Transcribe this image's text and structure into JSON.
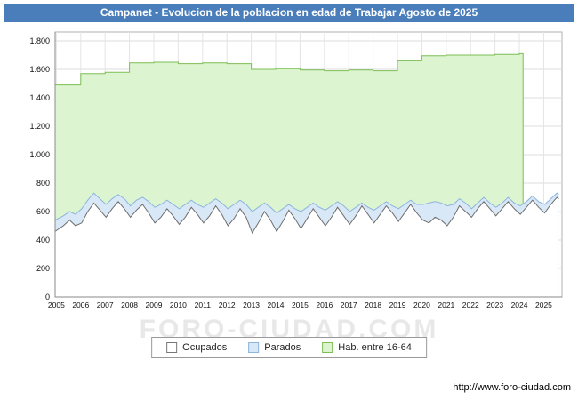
{
  "title": "Campanet - Evolucion de la poblacion en edad de Trabajar Agosto de 2025",
  "watermark": "FORO-CIUDAD.COM",
  "footer_url": "http://www.foro-ciudad.com",
  "colors": {
    "title_bar": "#4a7ebb",
    "grid": "#dcdcdc",
    "plot_border": "#b0b0b0",
    "habitantes_fill": "#dcf5d0",
    "habitantes_stroke": "#7dbd54",
    "parados_fill": "#d9e8f7",
    "parados_stroke": "#8cb4dd",
    "ocupados_fill": "#ffffff",
    "ocupados_stroke": "#6e6e6e"
  },
  "legend": {
    "items": [
      {
        "label": "Ocupados",
        "fill": "#ffffff",
        "stroke": "#777777"
      },
      {
        "label": "Parados",
        "fill": "#d9e8f7",
        "stroke": "#8cb4dd"
      },
      {
        "label": "Hab. entre 16-64",
        "fill": "#dcf5d0",
        "stroke": "#7dbd54"
      }
    ]
  },
  "chart_data": {
    "type": "area",
    "title": "Campanet - Evolucion de la poblacion en edad de Trabajar Agosto de 2025",
    "xlabel": "",
    "ylabel": "",
    "grid": true,
    "legend_position": "bottom",
    "xlim": [
      2004.95,
      2025.75
    ],
    "ylim": [
      0,
      1800
    ],
    "y_ticks": [
      {
        "v": 0,
        "label": "0"
      },
      {
        "v": 200,
        "label": "200"
      },
      {
        "v": 400,
        "label": "400"
      },
      {
        "v": 600,
        "label": "600"
      },
      {
        "v": 800,
        "label": "800"
      },
      {
        "v": 1000,
        "label": "1.000"
      },
      {
        "v": 1200,
        "label": "1.200"
      },
      {
        "v": 1400,
        "label": "1.400"
      },
      {
        "v": 1600,
        "label": "1.600"
      },
      {
        "v": 1800,
        "label": "1.800"
      }
    ],
    "x_ticks": [
      {
        "v": 2005,
        "label": "2005"
      },
      {
        "v": 2006,
        "label": "2006"
      },
      {
        "v": 2007,
        "label": "2007"
      },
      {
        "v": 2008,
        "label": "2008"
      },
      {
        "v": 2009,
        "label": "2009"
      },
      {
        "v": 2010,
        "label": "2010"
      },
      {
        "v": 2011,
        "label": "2011"
      },
      {
        "v": 2012,
        "label": "2012"
      },
      {
        "v": 2013,
        "label": "2013"
      },
      {
        "v": 2014,
        "label": "2014"
      },
      {
        "v": 2015,
        "label": "2015"
      },
      {
        "v": 2016,
        "label": "2016"
      },
      {
        "v": 2017,
        "label": "2017"
      },
      {
        "v": 2018,
        "label": "2018"
      },
      {
        "v": 2019,
        "label": "2019"
      },
      {
        "v": 2020,
        "label": "2020"
      },
      {
        "v": 2021,
        "label": "2021"
      },
      {
        "v": 2022,
        "label": "2022"
      },
      {
        "v": 2023,
        "label": "2023"
      },
      {
        "v": 2024,
        "label": "2024"
      },
      {
        "v": 2025,
        "label": "2025"
      }
    ],
    "x": [
      2004.95,
      2005.29,
      2005.54,
      2005.79,
      2006.04,
      2006.29,
      2006.54,
      2006.79,
      2007.04,
      2007.29,
      2007.54,
      2007.79,
      2008.04,
      2008.29,
      2008.54,
      2008.79,
      2009.04,
      2009.29,
      2009.54,
      2009.79,
      2010.04,
      2010.29,
      2010.54,
      2010.79,
      2011.04,
      2011.29,
      2011.54,
      2011.79,
      2012.04,
      2012.29,
      2012.54,
      2012.79,
      2013.04,
      2013.29,
      2013.54,
      2013.79,
      2014.04,
      2014.29,
      2014.54,
      2014.79,
      2015.04,
      2015.29,
      2015.54,
      2015.79,
      2016.04,
      2016.29,
      2016.54,
      2016.79,
      2017.04,
      2017.29,
      2017.54,
      2017.79,
      2018.04,
      2018.29,
      2018.54,
      2018.79,
      2019.04,
      2019.29,
      2019.54,
      2019.79,
      2020.04,
      2020.29,
      2020.54,
      2020.79,
      2021.04,
      2021.29,
      2021.54,
      2021.79,
      2022.04,
      2022.29,
      2022.54,
      2022.79,
      2023.04,
      2023.29,
      2023.54,
      2023.79,
      2024.04,
      2024.29,
      2024.54,
      2024.79,
      2025.04,
      2025.29,
      2025.54,
      2025.62
    ],
    "series": [
      {
        "name": "Hab. entre 16-64",
        "mode": "step",
        "fill": "#dcf5d0",
        "stroke": "#7dbd54",
        "end_x": 2024.15,
        "points": [
          [
            2005,
            1490
          ],
          [
            2006,
            1570
          ],
          [
            2007,
            1580
          ],
          [
            2008,
            1645
          ],
          [
            2009,
            1650
          ],
          [
            2010,
            1640
          ],
          [
            2011,
            1645
          ],
          [
            2012,
            1640
          ],
          [
            2013,
            1600
          ],
          [
            2014,
            1605
          ],
          [
            2015,
            1595
          ],
          [
            2016,
            1590
          ],
          [
            2017,
            1595
          ],
          [
            2018,
            1590
          ],
          [
            2019,
            1660
          ],
          [
            2020,
            1695
          ],
          [
            2021,
            1700
          ],
          [
            2022,
            1700
          ],
          [
            2023,
            1705
          ],
          [
            2024,
            1710
          ]
        ]
      },
      {
        "name": "Parados",
        "mode": "line",
        "stacked": "values are Ocupados+Parados cumulative top",
        "fill": "#d9e8f7",
        "stroke": "#8cb4dd",
        "values": [
          540,
          570,
          600,
          580,
          620,
          680,
          730,
          690,
          650,
          690,
          720,
          690,
          640,
          680,
          700,
          670,
          630,
          650,
          680,
          650,
          620,
          650,
          680,
          650,
          630,
          660,
          690,
          660,
          620,
          650,
          680,
          650,
          600,
          630,
          660,
          630,
          590,
          620,
          650,
          620,
          600,
          630,
          660,
          630,
          610,
          640,
          670,
          640,
          600,
          630,
          660,
          630,
          610,
          640,
          670,
          640,
          620,
          650,
          680,
          650,
          650,
          660,
          670,
          660,
          640,
          650,
          690,
          660,
          620,
          660,
          700,
          660,
          630,
          660,
          700,
          660,
          640,
          670,
          710,
          670,
          650,
          690,
          730,
          720
        ]
      },
      {
        "name": "Ocupados",
        "mode": "line",
        "fill": "#ffffff",
        "stroke": "#6e6e6e",
        "values": [
          460,
          500,
          540,
          500,
          520,
          600,
          660,
          610,
          560,
          620,
          670,
          620,
          560,
          610,
          650,
          590,
          520,
          560,
          620,
          570,
          510,
          560,
          630,
          580,
          520,
          570,
          640,
          580,
          500,
          550,
          620,
          560,
          450,
          520,
          600,
          540,
          460,
          530,
          610,
          550,
          480,
          550,
          620,
          560,
          500,
          560,
          630,
          570,
          510,
          570,
          640,
          580,
          520,
          580,
          640,
          590,
          530,
          590,
          650,
          590,
          540,
          520,
          560,
          540,
          500,
          560,
          640,
          600,
          560,
          620,
          670,
          620,
          570,
          620,
          670,
          620,
          580,
          630,
          680,
          630,
          590,
          650,
          700,
          690
        ]
      }
    ]
  }
}
